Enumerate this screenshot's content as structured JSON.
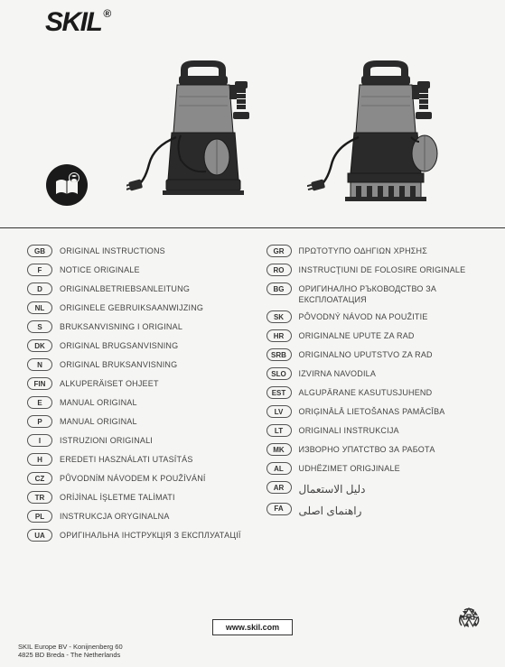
{
  "brand": "SKIL",
  "url": "www.skil.com",
  "address": {
    "line1": "SKIL Europe BV - Konijnenberg 60",
    "line2": "4825 BD  Breda - The Netherlands"
  },
  "languages_left": [
    {
      "code": "GB",
      "label": "ORIGINAL INSTRUCTIONS"
    },
    {
      "code": "F",
      "label": "NOTICE ORIGINALE"
    },
    {
      "code": "D",
      "label": "ORIGINALBETRIEBSANLEITUNG"
    },
    {
      "code": "NL",
      "label": "ORIGINELE GEBRUIKSAANWIJZING"
    },
    {
      "code": "S",
      "label": "BRUKSANVISNING I ORIGINAL"
    },
    {
      "code": "DK",
      "label": "ORIGINAL BRUGSANVISNING"
    },
    {
      "code": "N",
      "label": "ORIGINAL BRUKSANVISNING"
    },
    {
      "code": "FIN",
      "label": "ALKUPERÄISET OHJEET"
    },
    {
      "code": "E",
      "label": "MANUAL ORIGINAL"
    },
    {
      "code": "P",
      "label": "MANUAL ORIGINAL"
    },
    {
      "code": "I",
      "label": "ISTRUZIONI ORIGINALI"
    },
    {
      "code": "H",
      "label": "EREDETI HASZNÁLATI UTASÍTÁS"
    },
    {
      "code": "CZ",
      "label": "PŮVODNÍM NÁVODEM K POUŽÍVÁNÍ"
    },
    {
      "code": "TR",
      "label": "ORİJİNAL İŞLETME TALİMATI"
    },
    {
      "code": "PL",
      "label": "INSTRUKCJA ORYGINALNA"
    },
    {
      "code": "UA",
      "label": "ОРИГІНАЛЬНА ІНСТРУКЦІЯ З ЕКСПЛУАТАЦІЇ"
    }
  ],
  "languages_right": [
    {
      "code": "GR",
      "label": "ΠΡΩΤΟΤΥΠΟ ΟΔΗΓΙΩΝ ΧΡΗΣΗΣ"
    },
    {
      "code": "RO",
      "label": "INSTRUCŢIUNI DE FOLOSIRE ORIGINALE"
    },
    {
      "code": "BG",
      "label": "ОРИГИНАЛНО РЪКОВОДСТВО ЗА ЕКСПЛОАТАЦИЯ"
    },
    {
      "code": "SK",
      "label": "PÔVODNÝ NÁVOD NA POUŽITIE"
    },
    {
      "code": "HR",
      "label": "ORIGINALNE UPUTE ZA RAD"
    },
    {
      "code": "SRB",
      "label": "ORIGINALNO UPUTSTVO ZA RAD"
    },
    {
      "code": "SLO",
      "label": "IZVIRNA NAVODILA"
    },
    {
      "code": "EST",
      "label": "ALGUPÄRANE KASUTUSJUHEND"
    },
    {
      "code": "LV",
      "label": "ORIĢINĀLĀ LIETOŠANAS PAMĀCĪBA"
    },
    {
      "code": "LT",
      "label": "ORIGINALI INSTRUKCIJA"
    },
    {
      "code": "MK",
      "label": "ИЗВОРНО УПАТСТВО ЗА РАБОТА"
    },
    {
      "code": "AL",
      "label": "UDHËZIMET ORIGJINALE"
    },
    {
      "code": "AR",
      "label": "دليل الاستعمال",
      "rtl": true
    },
    {
      "code": "FA",
      "label": "راهنمای اصلی",
      "rtl": true
    }
  ],
  "colors": {
    "background": "#f5f5f3",
    "text": "#333333",
    "pump_body": "#8a8a8a",
    "pump_base": "#2a2a2a",
    "lines": "#1a1a1a"
  }
}
